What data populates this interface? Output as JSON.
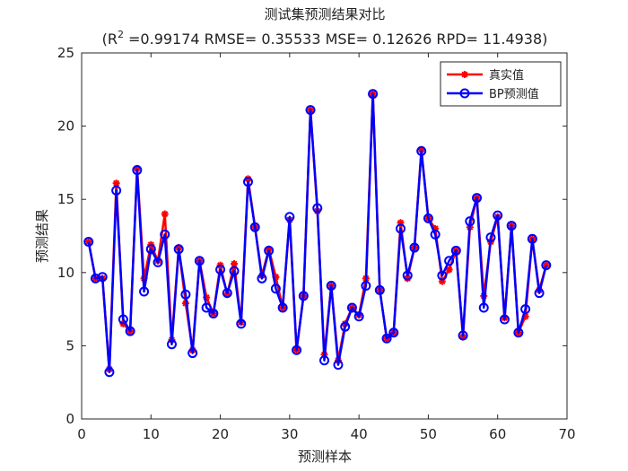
{
  "chart_data": {
    "type": "line",
    "title": "测试集预测结果对比",
    "subtitle_prefix": "(R",
    "subtitle_sup": "2",
    "subtitle_suffix": " =0.99174 RMSE= 0.35533 MSE= 0.12626 RPD= 11.4938)",
    "xlabel": "预测样本",
    "ylabel": "预测结果",
    "xlim": [
      0,
      70
    ],
    "ylim": [
      0,
      25
    ],
    "xticks": [
      0,
      10,
      20,
      30,
      40,
      50,
      60,
      70
    ],
    "yticks": [
      0,
      5,
      10,
      15,
      20,
      25
    ],
    "grid": false,
    "legend_position": "top-right",
    "x": [
      1,
      2,
      3,
      4,
      5,
      6,
      7,
      8,
      9,
      10,
      11,
      12,
      13,
      14,
      15,
      16,
      17,
      18,
      19,
      20,
      21,
      22,
      23,
      24,
      25,
      26,
      27,
      28,
      29,
      30,
      31,
      32,
      33,
      34,
      35,
      36,
      37,
      38,
      39,
      40,
      41,
      42,
      43,
      44,
      45,
      46,
      47,
      48,
      49,
      50,
      51,
      52,
      53,
      54,
      55,
      56,
      57,
      58,
      59,
      60,
      61,
      62,
      63,
      64,
      65,
      66,
      67
    ],
    "series": [
      {
        "name": "真实值",
        "color": "#ff0000",
        "marker": "star",
        "values": [
          12.1,
          9.6,
          9.6,
          3.4,
          16.1,
          6.5,
          6.0,
          17.1,
          9.6,
          11.9,
          10.8,
          14.0,
          5.4,
          11.7,
          7.9,
          4.7,
          10.8,
          8.3,
          7.2,
          10.5,
          8.5,
          10.6,
          6.6,
          16.4,
          13.1,
          9.8,
          11.6,
          9.7,
          7.6,
          13.6,
          4.7,
          8.4,
          21.1,
          14.2,
          4.4,
          9.1,
          4.0,
          6.5,
          7.6,
          7.1,
          9.6,
          22.2,
          8.8,
          5.5,
          5.9,
          13.4,
          9.6,
          11.7,
          18.4,
          13.7,
          13.0,
          9.4,
          10.2,
          11.5,
          5.6,
          13.1,
          15.1,
          8.4,
          12.1,
          13.8,
          6.9,
          13.2,
          5.9,
          7.0,
          12.3,
          8.8,
          10.5
        ]
      },
      {
        "name": "BP预测值",
        "color": "#0000ff",
        "marker": "circle",
        "values": [
          12.1,
          9.6,
          9.7,
          3.2,
          15.6,
          6.8,
          6.0,
          17.0,
          8.7,
          11.6,
          10.7,
          12.6,
          5.1,
          11.6,
          8.5,
          4.5,
          10.8,
          7.6,
          7.2,
          10.2,
          8.6,
          10.1,
          6.5,
          16.2,
          13.1,
          9.6,
          11.5,
          8.9,
          7.6,
          13.8,
          4.7,
          8.4,
          21.1,
          14.4,
          4.0,
          9.1,
          3.7,
          6.3,
          7.6,
          7.0,
          9.1,
          22.2,
          8.8,
          5.5,
          5.9,
          13.0,
          9.8,
          11.7,
          18.3,
          13.7,
          12.6,
          9.8,
          10.8,
          11.5,
          5.7,
          13.5,
          15.1,
          7.6,
          12.4,
          13.9,
          6.8,
          13.2,
          5.9,
          7.5,
          12.3,
          8.6,
          10.5
        ]
      }
    ]
  }
}
